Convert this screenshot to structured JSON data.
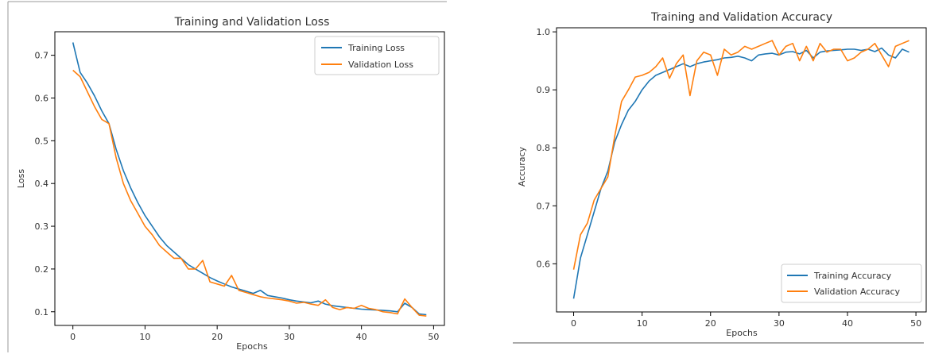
{
  "chart_data": [
    {
      "type": "line",
      "title": "Training and Validation Loss",
      "xlabel": "Epochs",
      "ylabel": "Loss",
      "xlim": [
        -2.5,
        51.5
      ],
      "ylim": [
        0.068,
        0.755
      ],
      "xticks": [
        0,
        10,
        20,
        30,
        40,
        50
      ],
      "yticks": [
        0.1,
        0.2,
        0.3,
        0.4,
        0.5,
        0.6,
        0.7
      ],
      "legend": "top-right",
      "grid": false,
      "x": [
        0,
        1,
        2,
        3,
        4,
        5,
        6,
        7,
        8,
        9,
        10,
        11,
        12,
        13,
        14,
        15,
        16,
        17,
        18,
        19,
        20,
        21,
        22,
        23,
        24,
        25,
        26,
        27,
        28,
        29,
        30,
        31,
        32,
        33,
        34,
        35,
        36,
        37,
        38,
        39,
        40,
        41,
        42,
        43,
        44,
        45,
        46,
        47,
        48,
        49
      ],
      "series": [
        {
          "name": "Training Loss",
          "color": "#1f77b4",
          "values": [
            0.73,
            0.66,
            0.635,
            0.605,
            0.57,
            0.54,
            0.48,
            0.43,
            0.39,
            0.355,
            0.325,
            0.3,
            0.275,
            0.255,
            0.24,
            0.225,
            0.21,
            0.2,
            0.19,
            0.18,
            0.172,
            0.165,
            0.158,
            0.153,
            0.148,
            0.143,
            0.15,
            0.138,
            0.135,
            0.132,
            0.128,
            0.125,
            0.123,
            0.121,
            0.125,
            0.118,
            0.114,
            0.112,
            0.11,
            0.108,
            0.106,
            0.105,
            0.104,
            0.103,
            0.102,
            0.1,
            0.12,
            0.11,
            0.095,
            0.093
          ]
        },
        {
          "name": "Validation Loss",
          "color": "#ff7f0e",
          "values": [
            0.665,
            0.65,
            0.615,
            0.58,
            0.55,
            0.54,
            0.46,
            0.4,
            0.36,
            0.33,
            0.3,
            0.28,
            0.255,
            0.24,
            0.225,
            0.225,
            0.2,
            0.2,
            0.22,
            0.17,
            0.165,
            0.16,
            0.185,
            0.15,
            0.145,
            0.14,
            0.135,
            0.132,
            0.13,
            0.128,
            0.125,
            0.12,
            0.122,
            0.118,
            0.115,
            0.128,
            0.11,
            0.105,
            0.11,
            0.108,
            0.115,
            0.108,
            0.105,
            0.1,
            0.098,
            0.095,
            0.13,
            0.11,
            0.092,
            0.09
          ]
        }
      ]
    },
    {
      "type": "line",
      "title": "Training and Validation Accuracy",
      "xlabel": "Epochs",
      "ylabel": "Accuracy",
      "xlim": [
        -2.5,
        51.5
      ],
      "ylim": [
        0.517,
        1.007
      ],
      "xticks": [
        0,
        10,
        20,
        30,
        40,
        50
      ],
      "yticks": [
        0.6,
        0.7,
        0.8,
        0.9,
        1.0
      ],
      "ytick_labels": [
        "0.6",
        "0.7",
        "0.8",
        "0.9",
        "1.0"
      ],
      "legend": "bottom-right",
      "grid": false,
      "x": [
        0,
        1,
        2,
        3,
        4,
        5,
        6,
        7,
        8,
        9,
        10,
        11,
        12,
        13,
        14,
        15,
        16,
        17,
        18,
        19,
        20,
        21,
        22,
        23,
        24,
        25,
        26,
        27,
        28,
        29,
        30,
        31,
        32,
        33,
        34,
        35,
        36,
        37,
        38,
        39,
        40,
        41,
        42,
        43,
        44,
        45,
        46,
        47,
        48,
        49
      ],
      "series": [
        {
          "name": "Training Accuracy",
          "color": "#1f77b4",
          "values": [
            0.54,
            0.61,
            0.65,
            0.69,
            0.73,
            0.76,
            0.81,
            0.84,
            0.865,
            0.88,
            0.9,
            0.915,
            0.925,
            0.93,
            0.935,
            0.94,
            0.945,
            0.94,
            0.945,
            0.948,
            0.95,
            0.952,
            0.955,
            0.956,
            0.958,
            0.955,
            0.95,
            0.96,
            0.962,
            0.963,
            0.96,
            0.965,
            0.966,
            0.962,
            0.968,
            0.955,
            0.965,
            0.967,
            0.968,
            0.969,
            0.97,
            0.97,
            0.968,
            0.97,
            0.966,
            0.972,
            0.96,
            0.955,
            0.97,
            0.965
          ]
        },
        {
          "name": "Validation Accuracy",
          "color": "#ff7f0e",
          "values": [
            0.59,
            0.65,
            0.67,
            0.71,
            0.73,
            0.75,
            0.82,
            0.88,
            0.9,
            0.922,
            0.925,
            0.93,
            0.94,
            0.955,
            0.92,
            0.945,
            0.96,
            0.89,
            0.95,
            0.965,
            0.96,
            0.925,
            0.97,
            0.96,
            0.965,
            0.975,
            0.97,
            0.975,
            0.98,
            0.985,
            0.96,
            0.975,
            0.98,
            0.95,
            0.975,
            0.95,
            0.98,
            0.965,
            0.97,
            0.97,
            0.95,
            0.955,
            0.965,
            0.97,
            0.98,
            0.96,
            0.94,
            0.975,
            0.98,
            0.985
          ]
        }
      ]
    }
  ]
}
